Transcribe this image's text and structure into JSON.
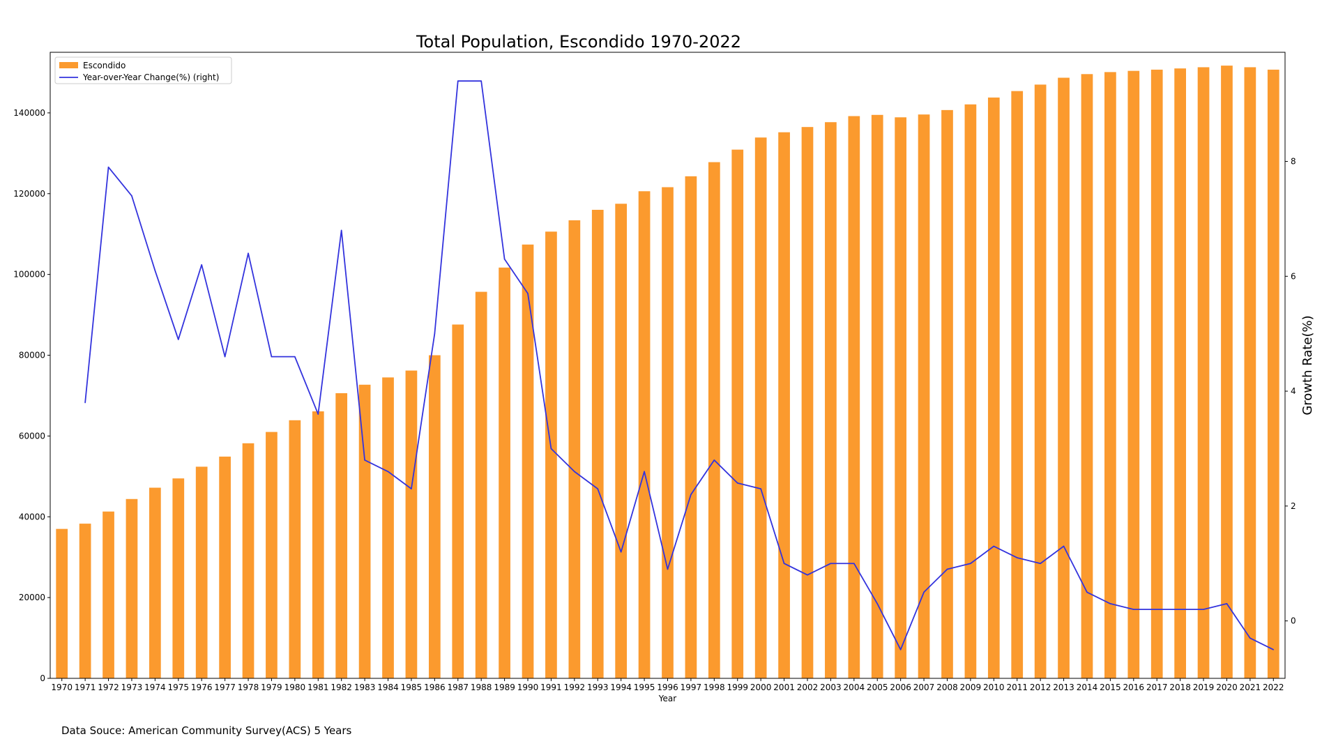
{
  "chart_data": {
    "type": "bar",
    "title": "Total Population, Escondido 1970-2022",
    "xlabel": "Year",
    "ylabel": "",
    "y2label": "Growth Rate(%)",
    "source": "Data Souce: American Community Survey(ACS) 5 Years",
    "categories": [
      "1970",
      "1971",
      "1972",
      "1973",
      "1974",
      "1975",
      "1976",
      "1977",
      "1978",
      "1979",
      "1980",
      "1981",
      "1982",
      "1983",
      "1984",
      "1985",
      "1986",
      "1987",
      "1988",
      "1989",
      "1990",
      "1991",
      "1992",
      "1993",
      "1994",
      "1995",
      "1996",
      "1997",
      "1998",
      "1999",
      "2000",
      "2001",
      "2002",
      "2003",
      "2004",
      "2005",
      "2006",
      "2007",
      "2008",
      "2009",
      "2010",
      "2011",
      "2012",
      "2013",
      "2014",
      "2015",
      "2016",
      "2017",
      "2018",
      "2019",
      "2020",
      "2021",
      "2022"
    ],
    "ylim": [
      0,
      155000
    ],
    "yticks": [
      0,
      20000,
      40000,
      60000,
      80000,
      100000,
      120000,
      140000
    ],
    "y2lim": [
      -1,
      9.9
    ],
    "y2ticks": [
      0,
      2,
      4,
      6,
      8
    ],
    "legend_position": "upper-left",
    "grid": false,
    "series": [
      {
        "name": "Escondido",
        "type": "bar",
        "axis": "left",
        "color": "#fb9a2e",
        "values": [
          37000,
          38300,
          41300,
          44400,
          47200,
          49500,
          52400,
          54900,
          58200,
          61000,
          63900,
          66100,
          70600,
          72700,
          74500,
          76200,
          80000,
          87600,
          95700,
          101700,
          107400,
          110600,
          113400,
          116000,
          117500,
          120600,
          121600,
          124300,
          127800,
          130900,
          133900,
          135200,
          136500,
          137700,
          139200,
          139500,
          138900,
          139600,
          140700,
          142100,
          143800,
          145400,
          147000,
          148700,
          149600,
          150100,
          150400,
          150700,
          151000,
          151300,
          151700,
          151300,
          150700
        ]
      },
      {
        "name": "Year-over-Year Change(%) (right)",
        "type": "line",
        "axis": "right",
        "color": "#3333dd",
        "values": [
          null,
          3.8,
          7.9,
          7.4,
          6.1,
          4.9,
          6.2,
          4.6,
          6.4,
          4.6,
          4.6,
          3.6,
          6.8,
          2.8,
          2.6,
          2.3,
          5.0,
          9.4,
          9.4,
          6.3,
          5.7,
          3.0,
          2.6,
          2.3,
          1.2,
          2.6,
          0.9,
          2.2,
          2.8,
          2.4,
          2.3,
          1.0,
          0.8,
          1.0,
          1.0,
          0.3,
          -0.5,
          0.5,
          0.9,
          1.0,
          1.3,
          1.1,
          1.0,
          1.3,
          0.5,
          0.3,
          0.2,
          0.2,
          0.2,
          0.2,
          0.3,
          -0.3,
          -0.5
        ]
      }
    ]
  }
}
